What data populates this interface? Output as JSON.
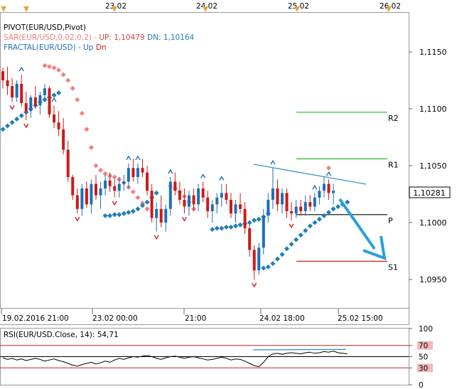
{
  "header": {
    "pivot_label": "PIVOT(EUR/USD,Pivot)",
    "sar_label": "SAR(EUR/USD,0.02,0.2)  -  ",
    "sar_up_label": "UP: 1,10479",
    "sar_dn_label": "DN: 1,10164",
    "fractal_label": "FRACTAL(EUR/USD)  -  ",
    "fractal_up": "Up",
    "fractal_dn": "Dn"
  },
  "top_axis": {
    "dates": [
      "23.02",
      "24.02",
      "25.02",
      "26.02"
    ]
  },
  "bottom_axis": {
    "ticks": [
      "19.02.2016 21:00",
      "23.02 00:00",
      "21:00",
      "24.02 18:00",
      "25.02 15:00"
    ]
  },
  "colors": {
    "bull": "#1f6fb8",
    "bear": "#cc1a1a",
    "sar_up": "#f08080",
    "sar_down": "#1f7fb8",
    "pivot_r2": "#22bb22",
    "pivot_r1": "#22bb22",
    "pivot_p": "#000000",
    "pivot_s1": "#cc2222",
    "trendline": "#2a8fd0",
    "forecast_arrow": "#2a9fdc",
    "rsi_line": "#000000"
  },
  "chart_data": [
    {
      "type": "candlestick",
      "symbol": "EUR/USD",
      "ylim": [
        1.0925,
        1.1185
      ],
      "y_ticks": [
        "1,1150",
        "1,1100",
        "1,1050",
        "1,1000",
        "1,0950"
      ],
      "current_price_label": "1,10281",
      "pivot_levels": [
        {
          "name": "R2",
          "value": 1.1097
        },
        {
          "name": "R1",
          "value": 1.1056
        },
        {
          "name": "P",
          "value": 1.1007
        },
        {
          "name": "S1",
          "value": 1.0966
        }
      ],
      "candles": [
        [
          1.1133,
          1.1136,
          1.1118,
          1.1125
        ],
        [
          1.1125,
          1.1137,
          1.1112,
          1.112
        ],
        [
          1.112,
          1.1127,
          1.1106,
          1.111
        ],
        [
          1.111,
          1.1125,
          1.1106,
          1.1122
        ],
        [
          1.1122,
          1.113,
          1.1102,
          1.1105
        ],
        [
          1.1105,
          1.1115,
          1.109,
          1.1098
        ],
        [
          1.1098,
          1.1112,
          1.1092,
          1.111
        ],
        [
          1.111,
          1.112,
          1.11,
          1.1103
        ],
        [
          1.1103,
          1.1115,
          1.1095,
          1.1112
        ],
        [
          1.1112,
          1.1122,
          1.1106,
          1.1118
        ],
        [
          1.1118,
          1.112,
          1.1092,
          1.1095
        ],
        [
          1.1095,
          1.1103,
          1.1083,
          1.1088
        ],
        [
          1.1088,
          1.1098,
          1.1076,
          1.1082
        ],
        [
          1.1082,
          1.1092,
          1.106,
          1.1064
        ],
        [
          1.1064,
          1.1072,
          1.1036,
          1.104
        ],
        [
          1.104,
          1.1042,
          1.102,
          1.1024
        ],
        [
          1.1024,
          1.103,
          1.1008,
          1.1012
        ],
        [
          1.1012,
          1.1034,
          1.1006,
          1.103
        ],
        [
          1.103,
          1.1036,
          1.1013,
          1.1016
        ],
        [
          1.1016,
          1.1038,
          1.1008,
          1.1034
        ],
        [
          1.1034,
          1.1042,
          1.102,
          1.1024
        ],
        [
          1.1024,
          1.1036,
          1.1012,
          1.103
        ],
        [
          1.103,
          1.1042,
          1.1024,
          1.1037
        ],
        [
          1.1037,
          1.1044,
          1.1027,
          1.1032
        ],
        [
          1.1032,
          1.1038,
          1.1022,
          1.1028
        ],
        [
          1.1028,
          1.104,
          1.1022,
          1.1034
        ],
        [
          1.1034,
          1.1042,
          1.1028,
          1.1036
        ],
        [
          1.1036,
          1.1052,
          1.103,
          1.1048
        ],
        [
          1.1048,
          1.1056,
          1.1036,
          1.104
        ],
        [
          1.104,
          1.1052,
          1.1034,
          1.1048
        ],
        [
          1.1048,
          1.1056,
          1.104,
          1.1044
        ],
        [
          1.1044,
          1.105,
          1.1024,
          1.1028
        ],
        [
          1.1028,
          1.1034,
          1.1,
          1.1004
        ],
        [
          1.1004,
          1.1018,
          1.0992,
          1.1012
        ],
        [
          1.1012,
          1.1024,
          1.0996,
          1.1
        ],
        [
          1.1,
          1.1016,
          1.0992,
          1.1012
        ],
        [
          1.1012,
          1.104,
          1.1006,
          1.1036
        ],
        [
          1.1036,
          1.1044,
          1.1024,
          1.1028
        ],
        [
          1.1028,
          1.1036,
          1.1016,
          1.102
        ],
        [
          1.102,
          1.103,
          1.1008,
          1.1014
        ],
        [
          1.1014,
          1.1028,
          1.1006,
          1.1024
        ],
        [
          1.1024,
          1.103,
          1.101,
          1.1016
        ],
        [
          1.1016,
          1.1034,
          1.101,
          1.103
        ],
        [
          1.103,
          1.1036,
          1.1018,
          1.1022
        ],
        [
          1.1022,
          1.1028,
          1.1004,
          1.101
        ],
        [
          1.101,
          1.102,
          1.1,
          1.1016
        ],
        [
          1.1016,
          1.1026,
          1.1008,
          1.1022
        ],
        [
          1.1022,
          1.1034,
          1.1014,
          1.1026
        ],
        [
          1.1026,
          1.1034,
          1.1016,
          1.102
        ],
        [
          1.102,
          1.1026,
          1.1004,
          1.1008
        ],
        [
          1.1008,
          1.102,
          1.1,
          1.1016
        ],
        [
          1.1016,
          1.1026,
          1.1008,
          1.1012
        ],
        [
          1.1012,
          1.1018,
          1.099,
          1.0995
        ],
        [
          1.0995,
          1.0998,
          1.097,
          1.0976
        ],
        [
          1.0976,
          1.098,
          1.095,
          1.0958
        ],
        [
          1.0958,
          1.0982,
          1.0954,
          1.0978
        ],
        [
          1.0978,
          1.1012,
          1.0972,
          1.1006
        ],
        [
          1.1006,
          1.1026,
          1.1,
          1.102
        ],
        [
          1.102,
          1.1048,
          1.1012,
          1.103
        ],
        [
          1.103,
          1.1038,
          1.101,
          1.1016
        ],
        [
          1.1016,
          1.103,
          1.1008,
          1.1026
        ],
        [
          1.1026,
          1.103,
          1.1004,
          1.101
        ],
        [
          1.101,
          1.1018,
          1.1002,
          1.1008
        ],
        [
          1.1008,
          1.102,
          1.1004,
          1.1014
        ],
        [
          1.1014,
          1.102,
          1.1006,
          1.101
        ],
        [
          1.101,
          1.1024,
          1.1006,
          1.1018
        ],
        [
          1.1018,
          1.1024,
          1.101,
          1.1014
        ],
        [
          1.1014,
          1.1026,
          1.101,
          1.1022
        ],
        [
          1.1022,
          1.1032,
          1.1016,
          1.1028
        ],
        [
          1.1028,
          1.104,
          1.1022,
          1.1034
        ],
        [
          1.1034,
          1.1038,
          1.102,
          1.1026
        ],
        [
          1.1026,
          1.1034,
          1.1016,
          1.1028
        ]
      ],
      "sar_upper_dots": [
        1.1138,
        1.1137,
        1.1136,
        1.1134,
        1.113,
        1.1125,
        1.1118,
        1.1108,
        1.1096,
        1.1082,
        1.1066,
        1.105,
        1.1046,
        1.1043,
        1.1041,
        1.104,
        1.1038,
        1.1035,
        1.1031,
        1.1027,
        1.1022,
        1.1017,
        1.1012,
        1.1032,
        1.103,
        1.1027,
        1.1023,
        1.1018,
        1.1012,
        1.1048
      ],
      "sar_lower_dots_a": [
        1.1082,
        1.1085,
        1.1088,
        1.1091,
        1.1094,
        1.1097,
        1.11,
        1.1103,
        1.1106,
        1.1108,
        1.111,
        1.1112,
        1.1114
      ],
      "sar_lower_dots_b": [
        1.1006,
        1.1006,
        1.1007,
        1.1007,
        1.1008,
        1.1009,
        1.101,
        1.1012,
        1.1015,
        1.1018,
        1.1022,
        1.1026
      ],
      "sar_lower_dots_c": [
        1.0994,
        1.0995,
        1.0995,
        1.0996,
        1.0996,
        1.0997,
        1.0998,
        1.0999,
        1.1,
        1.1002,
        1.1003,
        1.1005,
        1.1008
      ],
      "sar_lower_dots_d": [
        1.096,
        1.0961,
        1.0964,
        1.0968,
        1.0972,
        1.0977,
        1.0981,
        1.0985,
        1.0989,
        1.0993,
        1.0997,
        1.1,
        1.1003,
        1.1006,
        1.1009,
        1.1012,
        1.1014,
        1.1016,
        1.1018
      ]
    },
    {
      "type": "line",
      "name": "RSI",
      "label": "RSI(EUR/USD.Close, 14): 54,71",
      "ylim": [
        0,
        100
      ],
      "levels": [
        {
          "value": 100,
          "label": "100"
        },
        {
          "value": 70,
          "label": "70"
        },
        {
          "value": 50,
          "label": "50"
        },
        {
          "value": 30,
          "label": "30"
        },
        {
          "value": 0,
          "label": "0"
        }
      ],
      "values": [
        48,
        45,
        47,
        44,
        46,
        43,
        45,
        47,
        45,
        42,
        44,
        46,
        43,
        41,
        38,
        35,
        33,
        36,
        38,
        40,
        37,
        39,
        42,
        40,
        44,
        47,
        45,
        48,
        50,
        49,
        51,
        52,
        50,
        47,
        45,
        48,
        50,
        51,
        49,
        47,
        49,
        50,
        48,
        46,
        44,
        45,
        47,
        49,
        47,
        44,
        46,
        45,
        42,
        38,
        34,
        32,
        40,
        50,
        55,
        56,
        54,
        56,
        57,
        56,
        55,
        57,
        58,
        56,
        57,
        59,
        58,
        60,
        57,
        56,
        55
      ]
    }
  ]
}
